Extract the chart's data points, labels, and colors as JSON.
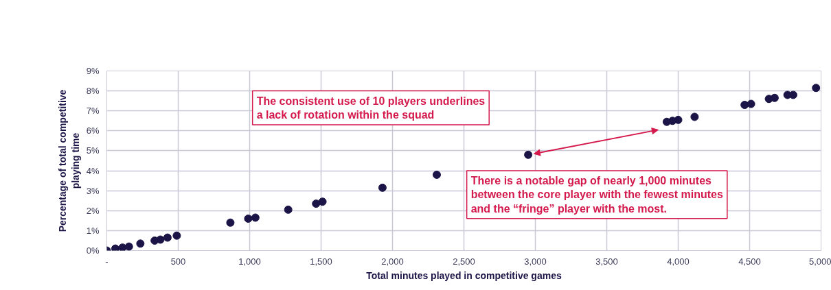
{
  "chart_data": {
    "type": "scatter",
    "xlabel": "Total minutes played in competitive games",
    "ylabel": "Percentage of total competitive\nplaying time",
    "x": [
      0,
      60,
      110,
      155,
      235,
      335,
      375,
      425,
      490,
      865,
      990,
      1040,
      1270,
      1465,
      1510,
      1930,
      2310,
      2950,
      3920,
      3960,
      4000,
      4115,
      4465,
      4510,
      4635,
      4675,
      4765,
      4805,
      4965
    ],
    "series": [
      {
        "color": "#1b1446",
        "values": [
          0,
          0.1,
          0.15,
          0.2,
          0.35,
          0.5,
          0.55,
          0.65,
          0.75,
          1.4,
          1.6,
          1.65,
          2.05,
          2.35,
          2.45,
          3.15,
          3.8,
          4.8,
          6.45,
          6.5,
          6.55,
          6.7,
          7.3,
          7.35,
          7.6,
          7.65,
          7.8,
          7.8,
          8.15
        ]
      }
    ],
    "xlim": [
      0,
      5000
    ],
    "xticks": [
      {
        "value": 0,
        "label": "-"
      },
      500,
      {
        "value": 1000,
        "label": "1,000"
      },
      {
        "value": 1500,
        "label": "1,500"
      },
      {
        "value": 2000,
        "label": "2,000"
      },
      {
        "value": 2500,
        "label": "2,500"
      },
      {
        "value": 3000,
        "label": "3,000"
      },
      {
        "value": 3500,
        "label": "3,500"
      },
      {
        "value": 4000,
        "label": "4,000"
      },
      {
        "value": 4500,
        "label": "4,500"
      },
      {
        "value": 5000,
        "label": "5,000"
      }
    ],
    "ylim": [
      0,
      9
    ],
    "yticks": [
      {
        "value": 0,
        "label": "0%"
      },
      {
        "value": 1,
        "label": "1%"
      },
      {
        "value": 2,
        "label": "2%"
      },
      {
        "value": 3,
        "label": "3%"
      },
      {
        "value": 4,
        "label": "4%"
      },
      {
        "value": 5,
        "label": "5%"
      },
      {
        "value": 6,
        "label": "6%"
      },
      {
        "value": 7,
        "label": "7%"
      },
      {
        "value": 8,
        "label": "8%"
      },
      {
        "value": 9,
        "label": "9%"
      }
    ],
    "grid": true,
    "marker": "circle",
    "annotations": [
      "The consistent use of 10 players underlines\na lack of rotation within the squad",
      "There is a notable gap of nearly 1,000 minutes\nbetween the core player with the fewest minutes\nand the “fringe” player with the most."
    ]
  }
}
